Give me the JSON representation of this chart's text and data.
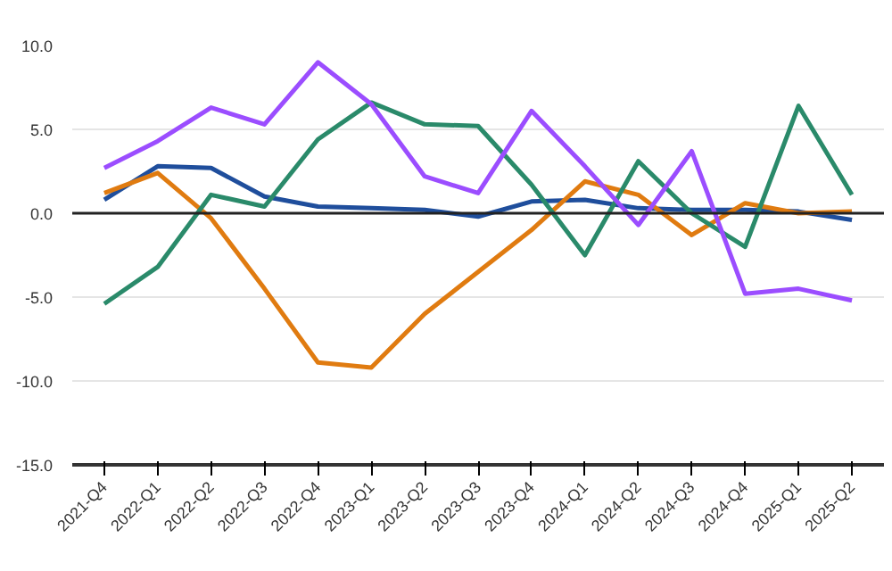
{
  "chart_data": {
    "type": "line",
    "categories": [
      "2021-Q4",
      "2022-Q1",
      "2022-Q2",
      "2022-Q3",
      "2022-Q4",
      "2023-Q1",
      "2023-Q2",
      "2023-Q3",
      "2023-Q4",
      "2024-Q1",
      "2024-Q2",
      "2024-Q3",
      "2024-Q4",
      "2025-Q1",
      "2025-Q2"
    ],
    "series": [
      {
        "color": "#1f4e9c",
        "values": [
          0.8,
          2.8,
          2.7,
          1.0,
          0.4,
          0.3,
          0.2,
          -0.2,
          0.7,
          0.8,
          0.3,
          0.2,
          0.2,
          0.1,
          -0.4
        ]
      },
      {
        "color": "#e07b10",
        "values": [
          1.2,
          2.4,
          -0.3,
          -4.5,
          -8.9,
          -9.2,
          -6.0,
          -3.5,
          -1.0,
          1.9,
          1.1,
          -1.3,
          0.6,
          0.0,
          0.1
        ]
      },
      {
        "color": "#2a8a6a",
        "values": [
          -5.4,
          -3.2,
          1.1,
          0.4,
          4.4,
          6.6,
          5.3,
          5.2,
          1.7,
          -2.5,
          3.1,
          0.0,
          -2.0,
          6.4,
          1.1
        ]
      },
      {
        "color": "#9b4dff",
        "values": [
          2.7,
          4.3,
          6.3,
          5.3,
          9.0,
          6.5,
          2.2,
          1.2,
          6.1,
          2.8,
          -0.7,
          3.7,
          -4.8,
          -4.5,
          -5.2
        ]
      }
    ],
    "ylim": [
      -15,
      10
    ],
    "yticks": [
      {
        "value": -15,
        "label": "-15.0"
      },
      {
        "value": -10,
        "label": "-10.0"
      },
      {
        "value": -5,
        "label": "-5.0"
      },
      {
        "value": 0,
        "label": "0.0"
      },
      {
        "value": 5,
        "label": "5.0"
      },
      {
        "value": 10,
        "label": "10.0"
      }
    ],
    "ref_lines": [
      {
        "axis": "y",
        "value": 0,
        "color": "#222222"
      }
    ],
    "grid": "y",
    "marker": "none",
    "line_style": "solid"
  }
}
